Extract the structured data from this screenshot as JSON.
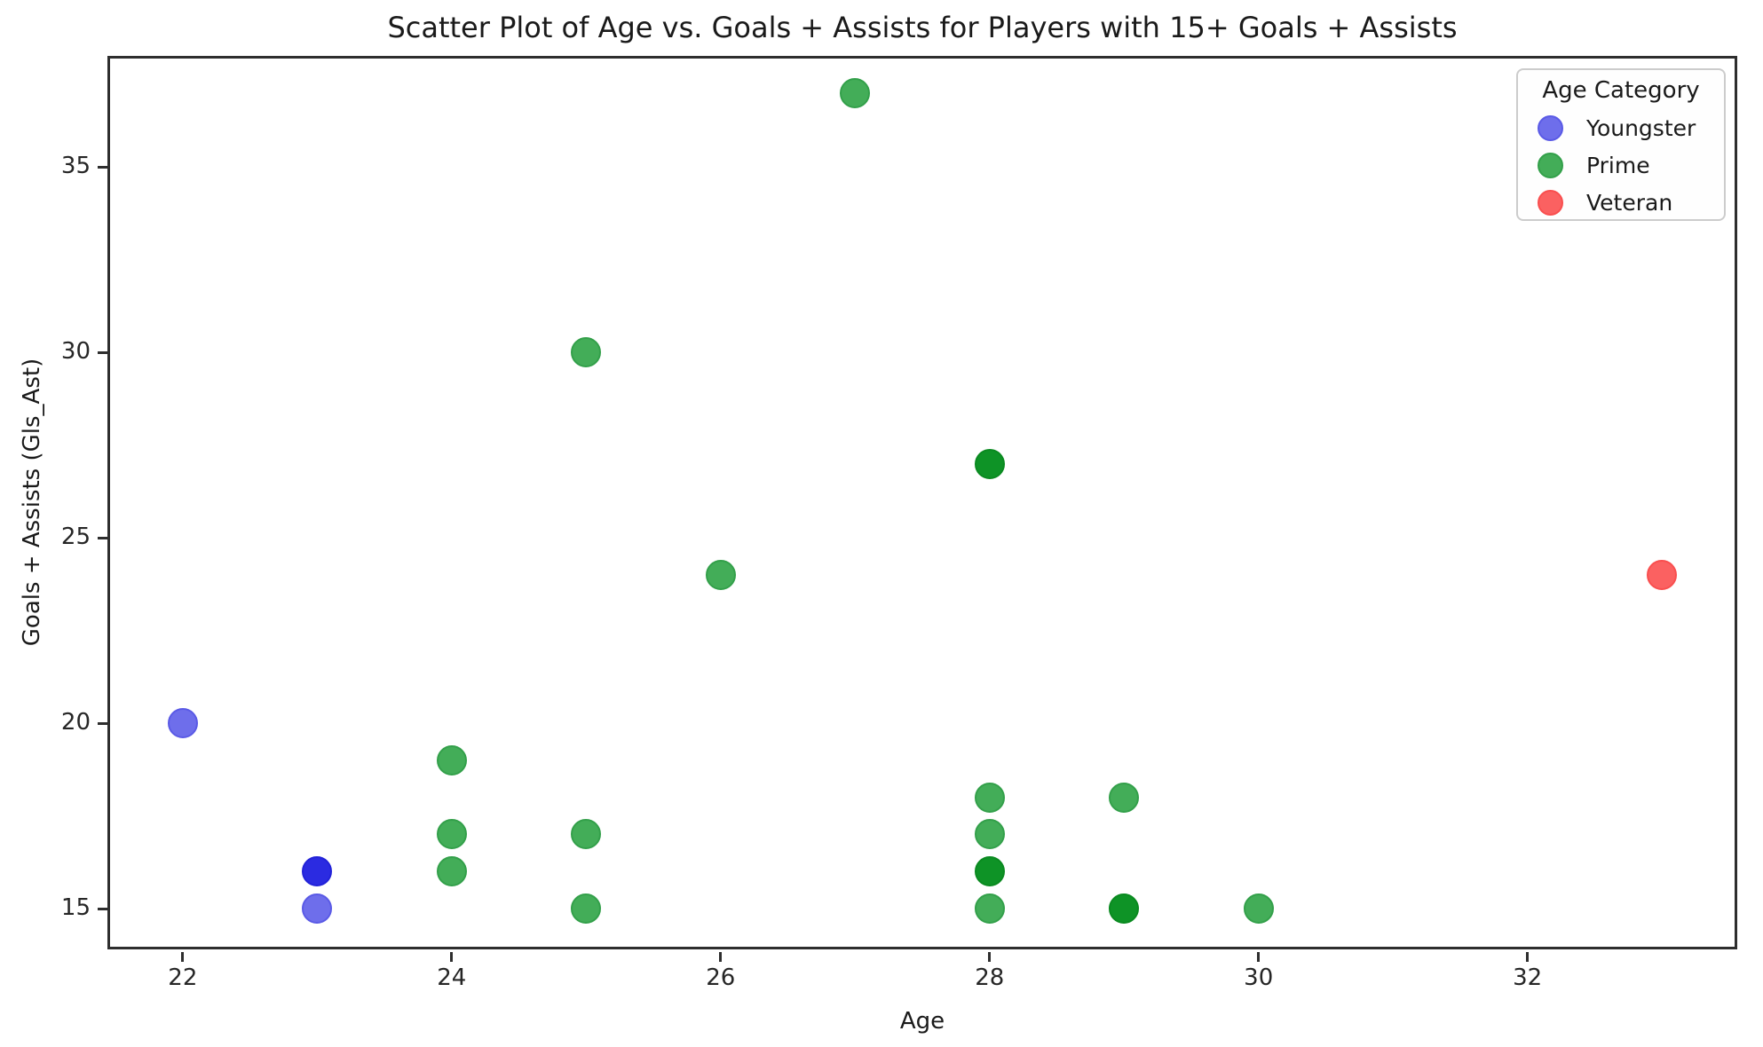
{
  "chart_data": {
    "type": "scatter",
    "title": "Scatter Plot of Age vs. Goals + Assists for Players with 15+ Goals + Assists",
    "xlabel": "Age",
    "ylabel": "Goals + Assists (Gls_Ast)",
    "xlim": [
      21.44,
      33.56
    ],
    "ylim": [
      13.9,
      38.0
    ],
    "xticks": [
      22,
      24,
      26,
      28,
      30,
      32
    ],
    "yticks": [
      15,
      20,
      25,
      30,
      35
    ],
    "grid": false,
    "legend_title": "Age Category",
    "legend_position": "top-right",
    "series": [
      {
        "name": "Youngster",
        "color": "#6e6eeb",
        "edge_color": "#5a5ae6",
        "overlap_color": "#2b2be1",
        "overlap_edge_color": "#2222d8",
        "points": [
          {
            "x": 22,
            "y": 20
          },
          {
            "x": 23,
            "y": 16,
            "overlap": true
          },
          {
            "x": 23,
            "y": 15
          }
        ]
      },
      {
        "name": "Prime",
        "color": "#43ad58",
        "edge_color": "#33a04a",
        "overlap_color": "#0e9326",
        "overlap_edge_color": "#0a8a20",
        "points": [
          {
            "x": 24,
            "y": 19
          },
          {
            "x": 24,
            "y": 17
          },
          {
            "x": 24,
            "y": 16
          },
          {
            "x": 25,
            "y": 30
          },
          {
            "x": 25,
            "y": 17
          },
          {
            "x": 25,
            "y": 15
          },
          {
            "x": 26,
            "y": 24
          },
          {
            "x": 27,
            "y": 37
          },
          {
            "x": 28,
            "y": 27,
            "overlap": true
          },
          {
            "x": 28,
            "y": 18
          },
          {
            "x": 28,
            "y": 17
          },
          {
            "x": 28,
            "y": 16,
            "overlap": true
          },
          {
            "x": 28,
            "y": 15
          },
          {
            "x": 29,
            "y": 18
          },
          {
            "x": 29,
            "y": 15,
            "overlap": true
          },
          {
            "x": 30,
            "y": 15
          }
        ]
      },
      {
        "name": "Veteran",
        "color": "#fb6161",
        "edge_color": "#f94f4f",
        "overlap_color": "#e02a2a",
        "overlap_edge_color": "#d42222",
        "points": [
          {
            "x": 33,
            "y": 24
          }
        ]
      }
    ]
  }
}
